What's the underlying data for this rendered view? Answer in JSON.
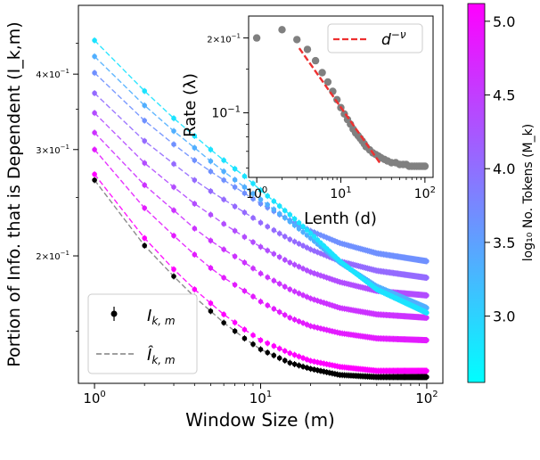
{
  "chart_data": [
    {
      "type": "scatter",
      "title": "",
      "xlabel": "Window Size (m)",
      "ylabel": "Portion of Info. that is Dependent (I_k,m)",
      "xscale": "log",
      "yscale": "log",
      "xlim": [
        0.8,
        125
      ],
      "ylim": [
        0.123,
        0.52
      ],
      "x_ticks": [
        {
          "value": 1,
          "base": "10",
          "exp": "0"
        },
        {
          "value": 10,
          "base": "10",
          "exp": "1"
        },
        {
          "value": 100,
          "base": "10",
          "exp": "2"
        }
      ],
      "y_ticks": [
        {
          "value": 0.2,
          "base": "2×10",
          "exp": "−1"
        },
        {
          "value": 0.3,
          "base": "3×10",
          "exp": "−1"
        },
        {
          "value": 0.4,
          "base": "4×10",
          "exp": "−1"
        }
      ],
      "legend": {
        "position": "bottom-left",
        "entries": [
          {
            "label": "I",
            "sub": "k, m",
            "style": "black-dot-errorbar"
          },
          {
            "label": "Î",
            "sub": "k, m",
            "style": "gray-dashed"
          }
        ]
      },
      "series_note": "9 series coloured by log10 No. Tokens (M_k); each point at window sizes m = 1..100",
      "series": [
        {
          "name": "black",
          "log10_tokens": null,
          "color": "#000000",
          "m": [
            1,
            2,
            3,
            4,
            5,
            6,
            8,
            10,
            15,
            20,
            30,
            50,
            100
          ],
          "values": [
            0.267,
            0.208,
            0.185,
            0.171,
            0.162,
            0.155,
            0.146,
            0.14,
            0.133,
            0.13,
            0.127,
            0.126,
            0.126
          ]
        },
        {
          "name": "s1",
          "log10_tokens": 5.05,
          "color": "#ff00ff",
          "m": [
            1,
            2,
            3,
            4,
            5,
            6,
            8,
            10,
            15,
            20,
            30,
            50,
            100
          ],
          "values": [
            0.273,
            0.214,
            0.19,
            0.176,
            0.167,
            0.16,
            0.151,
            0.145,
            0.138,
            0.134,
            0.131,
            0.129,
            0.129
          ]
        },
        {
          "name": "s2",
          "log10_tokens": 4.85,
          "color": "#e31bff",
          "m": [
            1,
            2,
            3,
            4,
            5,
            6,
            8,
            10,
            15,
            20,
            30,
            50,
            100
          ],
          "values": [
            0.3,
            0.24,
            0.216,
            0.201,
            0.191,
            0.184,
            0.175,
            0.168,
            0.158,
            0.153,
            0.149,
            0.146,
            0.145
          ]
        },
        {
          "name": "s3",
          "log10_tokens": 4.6,
          "color": "#cc32ff",
          "m": [
            1,
            2,
            3,
            4,
            5,
            6,
            8,
            10,
            15,
            20,
            30,
            50,
            100
          ],
          "values": [
            0.32,
            0.262,
            0.238,
            0.222,
            0.212,
            0.205,
            0.195,
            0.187,
            0.176,
            0.17,
            0.164,
            0.16,
            0.158
          ]
        },
        {
          "name": "s4",
          "log10_tokens": 4.4,
          "color": "#b24cff",
          "m": [
            1,
            2,
            3,
            4,
            5,
            6,
            8,
            10,
            15,
            20,
            30,
            50,
            100
          ],
          "values": [
            0.345,
            0.285,
            0.26,
            0.244,
            0.234,
            0.226,
            0.215,
            0.207,
            0.195,
            0.188,
            0.181,
            0.175,
            0.172
          ]
        },
        {
          "name": "s5",
          "log10_tokens": 4.15,
          "color": "#946aff",
          "m": [
            1,
            2,
            3,
            4,
            5,
            6,
            8,
            10,
            15,
            20,
            30,
            50,
            100
          ],
          "values": [
            0.372,
            0.31,
            0.284,
            0.267,
            0.256,
            0.248,
            0.236,
            0.227,
            0.213,
            0.205,
            0.196,
            0.189,
            0.184
          ]
        },
        {
          "name": "s6",
          "log10_tokens": 3.85,
          "color": "#6f90ff",
          "m": [
            1,
            2,
            3,
            4,
            5,
            6,
            8,
            10,
            15,
            20,
            30,
            50,
            100
          ],
          "values": [
            0.402,
            0.335,
            0.306,
            0.288,
            0.276,
            0.267,
            0.254,
            0.244,
            0.229,
            0.22,
            0.21,
            0.202,
            0.196
          ]
        },
        {
          "name": "s7",
          "log10_tokens": 3.55,
          "color": "#50afff",
          "m": [
            1,
            2,
            3,
            4,
            5,
            6,
            8,
            10,
            15,
            20,
            30,
            50,
            100
          ],
          "values": [
            0.428,
            0.355,
            0.322,
            0.302,
            0.287,
            0.276,
            0.26,
            0.248,
            0.228,
            0.214,
            0.195,
            0.178,
            0.164
          ]
        },
        {
          "name": "s8",
          "log10_tokens": 3.1,
          "color": "#1be3ff",
          "m": [
            1,
            2,
            3,
            4,
            5,
            6,
            8,
            10,
            15,
            20,
            30,
            50,
            100
          ],
          "values": [
            0.455,
            0.375,
            0.338,
            0.316,
            0.3,
            0.288,
            0.271,
            0.257,
            0.234,
            0.218,
            0.196,
            0.176,
            0.161
          ]
        }
      ]
    },
    {
      "type": "scatter",
      "title": "inset",
      "xlabel": "Lenth (d)",
      "ylabel": "Rate (λ)",
      "xscale": "log",
      "yscale": "log",
      "xlim": [
        0.8,
        125
      ],
      "ylim": [
        0.055,
        0.245
      ],
      "x_ticks": [
        {
          "value": 1,
          "base": "10",
          "exp": "0"
        },
        {
          "value": 10,
          "base": "10",
          "exp": "1"
        },
        {
          "value": 100,
          "base": "10",
          "exp": "2"
        }
      ],
      "y_ticks": [
        {
          "value": 0.1,
          "base": "10",
          "exp": "−1"
        },
        {
          "value": 0.2,
          "base": "2×10",
          "exp": "−1"
        }
      ],
      "legend": {
        "position": "top-right",
        "entries": [
          {
            "label": "d",
            "sup": "−ν",
            "style": "red-dashed"
          }
        ]
      },
      "points": {
        "d": [
          1,
          2,
          3,
          4,
          5,
          6,
          7,
          8,
          9,
          10,
          11,
          12,
          13,
          14,
          15,
          16,
          17,
          18,
          19,
          20,
          22,
          24,
          26,
          28,
          30,
          33,
          36,
          40,
          45,
          50,
          55,
          60,
          65,
          70,
          75,
          80,
          85,
          90,
          95,
          100
        ],
        "rate": [
          0.2,
          0.216,
          0.197,
          0.18,
          0.162,
          0.145,
          0.133,
          0.122,
          0.113,
          0.105,
          0.099,
          0.094,
          0.09,
          0.086,
          0.083,
          0.081,
          0.079,
          0.077,
          0.075,
          0.073,
          0.071,
          0.069,
          0.068,
          0.067,
          0.066,
          0.065,
          0.064,
          0.063,
          0.063,
          0.062,
          0.062,
          0.062,
          0.061,
          0.061,
          0.061,
          0.061,
          0.061,
          0.061,
          0.061,
          0.061
        ],
        "color": "#808080"
      },
      "fit_line": {
        "d": [
          3.2,
          30
        ],
        "rate": [
          0.182,
          0.062
        ],
        "color": "#ee3030"
      }
    }
  ],
  "colorbar": {
    "label": "log₁₀ No. Tokens (M_k)",
    "min": 2.55,
    "max": 5.12,
    "ticks": [
      {
        "value": 3.0,
        "label": "3.0"
      },
      {
        "value": 3.5,
        "label": "3.5"
      },
      {
        "value": 4.0,
        "label": "4.0"
      },
      {
        "value": 4.5,
        "label": "4.5"
      },
      {
        "value": 5.0,
        "label": "5.0"
      }
    ],
    "color_low": "#00ffff",
    "color_high": "#ff00ff"
  }
}
